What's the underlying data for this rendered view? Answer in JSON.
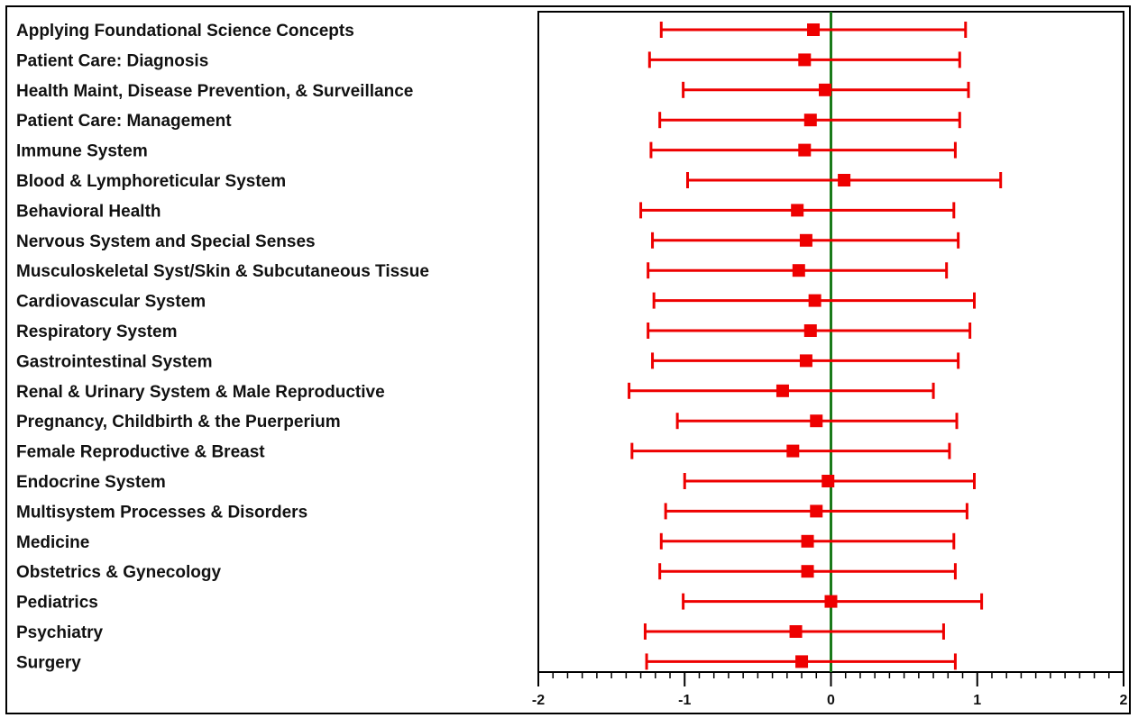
{
  "chart_data": {
    "type": "forest",
    "title": "",
    "xlabel": "",
    "ylabel": "",
    "xlim": [
      -2,
      2
    ],
    "x_ticks": [
      -2,
      -1,
      0,
      1,
      2
    ],
    "x_tick_labels": [
      "-2",
      "-1",
      "0",
      "1",
      "2"
    ],
    "reference_line": 0,
    "colors": {
      "marker": "#ee0000",
      "reference": "#1a7a1a",
      "text": "#111111"
    },
    "categories": [
      "Applying Foundational Science Concepts",
      "Patient Care: Diagnosis",
      "Health Maint, Disease Prevention, & Surveillance",
      "Patient Care: Management",
      "Immune System",
      "Blood & Lymphoreticular System",
      "Behavioral Health",
      "Nervous System and Special Senses",
      "Musculoskeletal Syst/Skin & Subcutaneous Tissue",
      "Cardiovascular System",
      "Respiratory System",
      "Gastrointestinal System",
      "Renal & Urinary System & Male Reproductive",
      "Pregnancy, Childbirth & the Puerperium",
      "Female Reproductive & Breast",
      "Endocrine System",
      "Multisystem Processes & Disorders",
      "Medicine",
      "Obstetrics & Gynecology",
      "Pediatrics",
      "Psychiatry",
      "Surgery"
    ],
    "estimates": [
      -0.12,
      -0.18,
      -0.04,
      -0.14,
      -0.18,
      0.09,
      -0.23,
      -0.17,
      -0.22,
      -0.11,
      -0.14,
      -0.17,
      -0.33,
      -0.1,
      -0.26,
      -0.02,
      -0.1,
      -0.16,
      -0.16,
      0.0,
      -0.24,
      -0.2
    ],
    "lower": [
      -1.16,
      -1.24,
      -1.01,
      -1.17,
      -1.23,
      -0.98,
      -1.3,
      -1.22,
      -1.25,
      -1.21,
      -1.25,
      -1.22,
      -1.38,
      -1.05,
      -1.36,
      -1.0,
      -1.13,
      -1.16,
      -1.17,
      -1.01,
      -1.27,
      -1.26
    ],
    "upper": [
      0.92,
      0.88,
      0.94,
      0.88,
      0.85,
      1.16,
      0.84,
      0.87,
      0.79,
      0.98,
      0.95,
      0.87,
      0.7,
      0.86,
      0.81,
      0.98,
      0.93,
      0.84,
      0.85,
      1.03,
      0.77,
      0.85
    ]
  }
}
